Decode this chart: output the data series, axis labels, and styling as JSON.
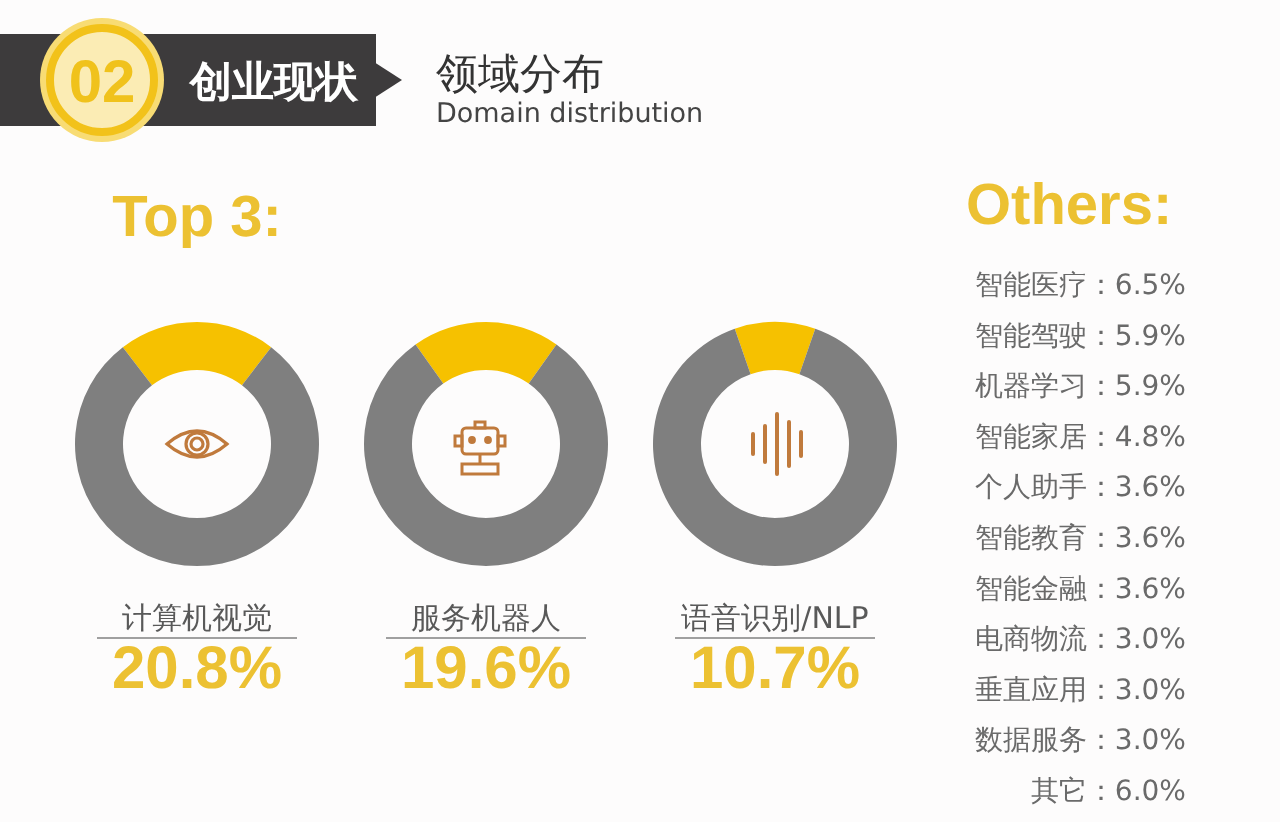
{
  "chart_data": [
    {
      "type": "other",
      "title": "领域分布",
      "subtitle": "Domain distribution",
      "annotations": [
        "02",
        "创业现状"
      ]
    },
    {
      "type": "donut",
      "title": "Top 3:",
      "xlabel": "计算机视觉",
      "categories": [
        null,
        null
      ],
      "values": [
        20.8,
        79.2
      ],
      "colors": [
        "#f6c100",
        "#7f7f7f"
      ],
      "annotations": [
        "20.8%"
      ]
    },
    {
      "type": "donut",
      "xlabel": "服务机器人",
      "categories": [
        null,
        null
      ],
      "values": [
        19.6,
        80.4
      ],
      "colors": [
        "#f6c100",
        "#7f7f7f"
      ],
      "annotations": [
        "19.6%"
      ]
    },
    {
      "type": "donut",
      "xlabel": "语音识别/NLP",
      "categories": [
        null,
        null
      ],
      "values": [
        10.7,
        89.3
      ],
      "colors": [
        "#f6c100",
        "#7f7f7f"
      ],
      "annotations": [
        "10.7%"
      ]
    },
    {
      "type": "other",
      "title": "Others:",
      "annotations": [
        "智能医疗：6.5%",
        "智能驾驶：5.9%",
        "机器学习：5.9%",
        "智能家居：4.8%",
        "个人助手：3.6%",
        "智能教育：3.6%",
        "智能金融：3.6%",
        "电商物流：3.0%",
        "垂直应用：3.0%",
        "数据服务：3.0%",
        "其它：6.0%"
      ]
    }
  ]
}
